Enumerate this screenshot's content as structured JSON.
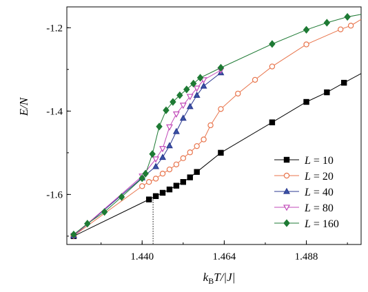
{
  "chart_data": {
    "type": "line",
    "xlabel_parts": [
      "k",
      "B",
      "T/|J|"
    ],
    "ylabel": "E/N",
    "xlim": [
      1.418,
      1.504
    ],
    "ylim": [
      -1.72,
      -1.15
    ],
    "x_ticks": [
      1.44,
      1.464,
      1.488
    ],
    "x_tick_labels": [
      "1.440",
      "1.464",
      "1.488"
    ],
    "y_ticks": [
      -1.2,
      -1.4,
      -1.6
    ],
    "y_tick_labels": [
      "-1.2",
      "-1.4",
      "-1.6"
    ],
    "legend_position": "right",
    "reference_line_x": 1.4432,
    "series": [
      {
        "name": "L = 10",
        "label_prefix": "L",
        "label_value": "= 10",
        "marker": "square",
        "color": "#000000",
        "fill": "#000000",
        "x": [
          1.42,
          1.442,
          1.444,
          1.446,
          1.448,
          1.45,
          1.452,
          1.454,
          1.456,
          1.463,
          1.478,
          1.488,
          1.494,
          1.499
        ],
        "y": [
          -1.7,
          -1.612,
          -1.604,
          -1.596,
          -1.588,
          -1.579,
          -1.57,
          -1.559,
          -1.546,
          -1.5,
          -1.427,
          -1.378,
          -1.355,
          -1.332
        ],
        "line_extension": [
          1.504,
          -1.31
        ]
      },
      {
        "name": "L = 20",
        "label_prefix": "L",
        "label_value": "= 20",
        "marker": "circle",
        "color": "#e8734a",
        "fill": "#ffffff",
        "x": [
          1.42,
          1.44,
          1.442,
          1.444,
          1.446,
          1.448,
          1.45,
          1.452,
          1.454,
          1.456,
          1.458,
          1.46,
          1.463,
          1.468,
          1.473,
          1.478,
          1.488,
          1.498,
          1.501
        ],
        "y": [
          -1.699,
          -1.58,
          -1.57,
          -1.562,
          -1.55,
          -1.54,
          -1.528,
          -1.513,
          -1.499,
          -1.484,
          -1.468,
          -1.434,
          -1.395,
          -1.358,
          -1.325,
          -1.293,
          -1.24,
          -1.204,
          -1.195
        ],
        "line_extension": [
          1.504,
          -1.18
        ]
      },
      {
        "name": "L = 40",
        "label_prefix": "L",
        "label_value": "= 40",
        "marker": "triangle-up",
        "color": "#2b3990",
        "fill": "#3b54a6",
        "x": [
          1.42,
          1.44,
          1.444,
          1.446,
          1.448,
          1.45,
          1.452,
          1.454,
          1.456,
          1.458,
          1.463
        ],
        "y": [
          -1.699,
          -1.56,
          -1.533,
          -1.511,
          -1.483,
          -1.449,
          -1.417,
          -1.389,
          -1.362,
          -1.34,
          -1.308
        ]
      },
      {
        "name": "L = 80",
        "label_prefix": "L",
        "label_value": "= 80",
        "marker": "triangle-down",
        "color": "#c048b8",
        "fill": "#ffffff",
        "x": [
          1.42,
          1.44,
          1.444,
          1.446,
          1.448,
          1.45,
          1.452,
          1.454,
          1.456,
          1.458,
          1.463
        ],
        "y": [
          -1.699,
          -1.556,
          -1.515,
          -1.49,
          -1.438,
          -1.407,
          -1.386,
          -1.365,
          -1.345,
          -1.325,
          -1.302
        ]
      },
      {
        "name": "L = 160",
        "label_prefix": "L",
        "label_value": "= 160",
        "marker": "diamond",
        "color": "#1e7a34",
        "fill": "#1e7a34",
        "x": [
          1.42,
          1.424,
          1.429,
          1.434,
          1.44,
          1.441,
          1.443,
          1.445,
          1.447,
          1.449,
          1.451,
          1.453,
          1.455,
          1.457,
          1.463,
          1.478,
          1.488,
          1.494,
          1.5
        ],
        "y": [
          -1.696,
          -1.67,
          -1.642,
          -1.606,
          -1.561,
          -1.55,
          -1.503,
          -1.437,
          -1.398,
          -1.378,
          -1.362,
          -1.348,
          -1.334,
          -1.32,
          -1.296,
          -1.239,
          -1.205,
          -1.188,
          -1.174
        ],
        "line_extension": [
          1.504,
          -1.168
        ]
      }
    ]
  }
}
